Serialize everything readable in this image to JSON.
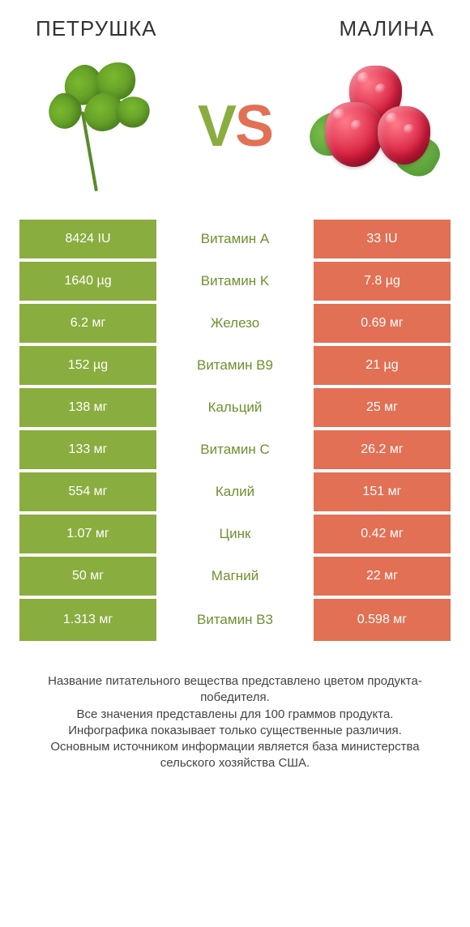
{
  "colors": {
    "green_bg": "#8aad3f",
    "green_text": "#6f9030",
    "red_bg": "#e27055",
    "red_text": "#c85a40",
    "white": "#ffffff"
  },
  "title_left": "ПЕТРУШКА",
  "title_right": "МАЛИНА",
  "vs_v": "V",
  "vs_s": "S",
  "rows": [
    {
      "left": "8424 IU",
      "label": "Витамин A",
      "right": "33 IU",
      "winner": "left"
    },
    {
      "left": "1640 µg",
      "label": "Витамин K",
      "right": "7.8 µg",
      "winner": "left"
    },
    {
      "left": "6.2 мг",
      "label": "Железо",
      "right": "0.69 мг",
      "winner": "left"
    },
    {
      "left": "152 µg",
      "label": "Витамин B9",
      "right": "21 µg",
      "winner": "left"
    },
    {
      "left": "138 мг",
      "label": "Кальций",
      "right": "25 мг",
      "winner": "left"
    },
    {
      "left": "133 мг",
      "label": "Витамин C",
      "right": "26.2 мг",
      "winner": "left"
    },
    {
      "left": "554 мг",
      "label": "Калий",
      "right": "151 мг",
      "winner": "left"
    },
    {
      "left": "1.07 мг",
      "label": "Цинк",
      "right": "0.42 мг",
      "winner": "left"
    },
    {
      "left": "50 мг",
      "label": "Магний",
      "right": "22 мг",
      "winner": "left"
    },
    {
      "left": "1.313 мг",
      "label": "Витамин B3",
      "right": "0.598 мг",
      "winner": "left"
    }
  ],
  "footer": "Название питательного вещества представлено цветом продукта-победителя.\nВсе значения представлены для 100 граммов продукта.\nИнфографика показывает только существенные различия.\nОсновным источником информации является база министерства сельского хозяйства США."
}
